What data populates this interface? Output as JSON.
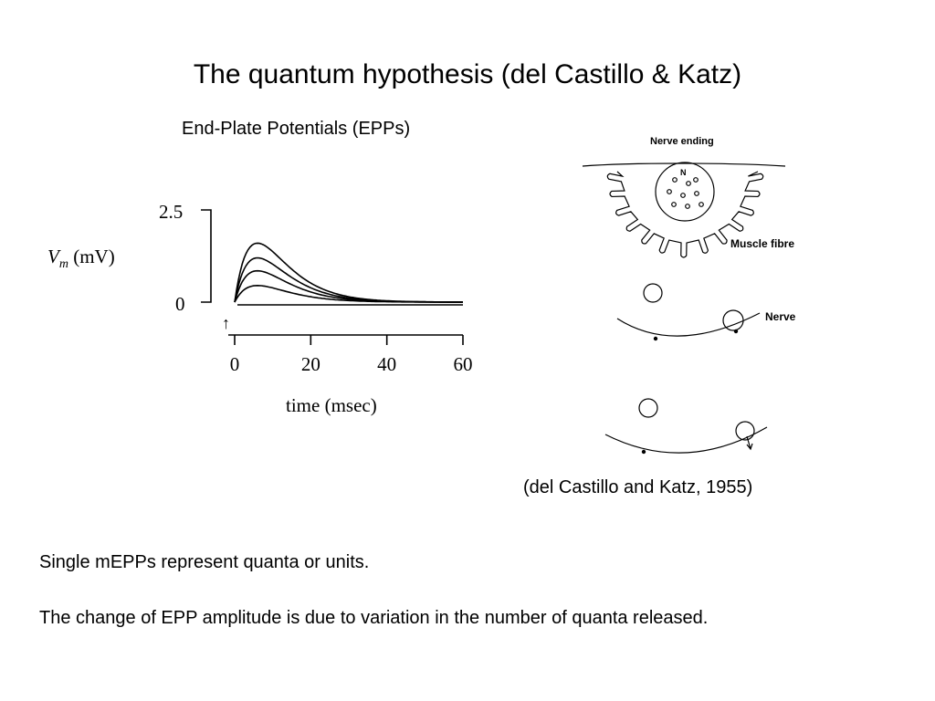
{
  "slide": {
    "title": "The quantum hypothesis (del Castillo & Katz)",
    "subtitle": "End-Plate Potentials (EPPs)",
    "citation": "(del Castillo and Katz, 1955)",
    "body_lines": [
      "Single mEPPs represent quanta or units.",
      "The change of EPP amplitude is due to variation in the number of quanta released."
    ]
  },
  "chart_data": {
    "type": "line",
    "ylabel_main": "V",
    "ylabel_sub": "m",
    "ylabel_unit": " (mV)",
    "xlabel": "time (msec)",
    "y_ticks": [
      "2.5",
      "0"
    ],
    "x_ticks": [
      "0",
      "20",
      "40",
      "60"
    ],
    "xlim": [
      0,
      60
    ],
    "ylim": [
      0,
      2.5
    ],
    "stimulus_marker": "↑",
    "series": [
      {
        "peak": 1.6,
        "peak_time": 6
      },
      {
        "peak": 1.2,
        "peak_time": 6
      },
      {
        "peak": 0.85,
        "peak_time": 6
      },
      {
        "peak": 0.45,
        "peak_time": 6
      }
    ]
  },
  "diagram": {
    "nerve_ending_label": "Nerve ending",
    "muscle_fibre_label": "Muscle fibre",
    "nerve_label": "Nerve",
    "terminal_letter": "N"
  }
}
